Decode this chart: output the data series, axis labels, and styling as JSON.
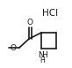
{
  "bg_color": "#ffffff",
  "line_color": "#1a1a1a",
  "line_width": 1.2,
  "font_size_label": 6.5,
  "font_size_hcl": 7.5,
  "HCl_text": "HCl",
  "O_up_label": "O",
  "O_down_label": "O",
  "NH_label": "NH",
  "H_label": "H"
}
